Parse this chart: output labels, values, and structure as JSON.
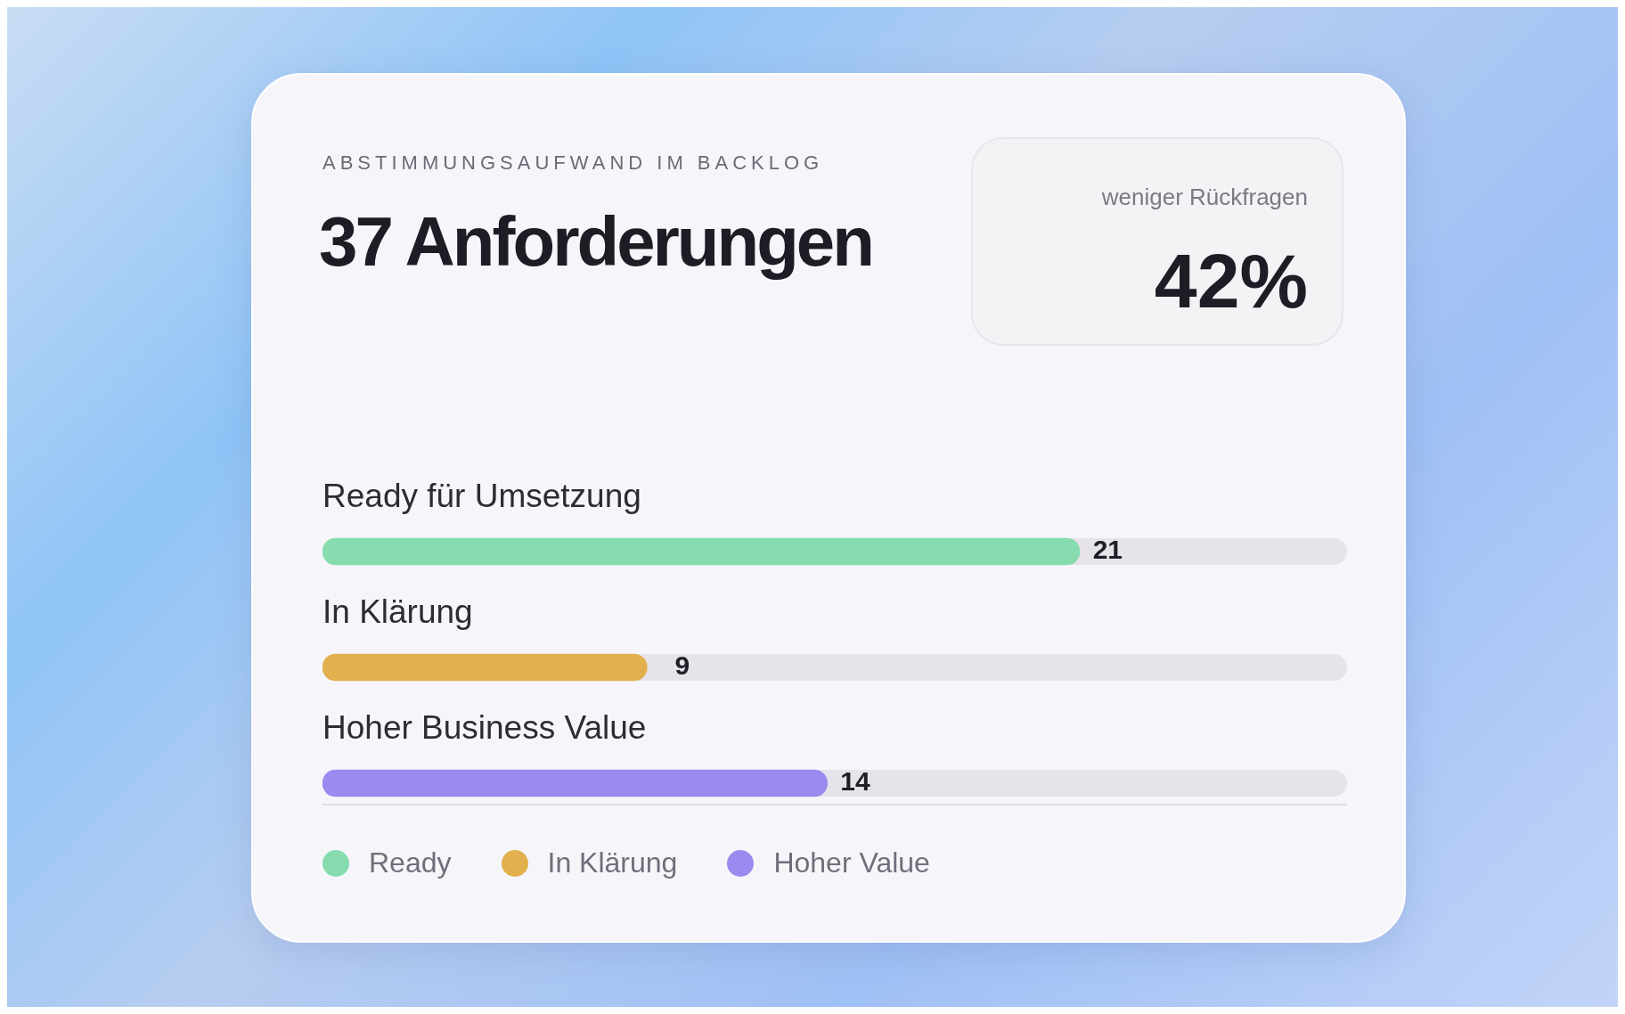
{
  "chart_data": {
    "type": "bar",
    "orientation": "horizontal",
    "stacked": true,
    "subtitle": "ABSTIMMUNGSAUFWAND IM BACKLOG",
    "title": "37 Anforderungen",
    "annotations": [
      "weniger Rückfragen",
      "42%"
    ],
    "categories": [
      "Ready für Umsetzung",
      "In Klärung",
      "Hoher Business Value"
    ],
    "series": [
      {
        "name": "Ready",
        "color": "#86dcae",
        "values": [
          21,
          null,
          null
        ]
      },
      {
        "name": "In Klärung",
        "color": "#e2b14e",
        "values": [
          null,
          9,
          null
        ]
      },
      {
        "name": "Hoher Value",
        "color": "#9b8aef",
        "values": [
          null,
          null,
          14
        ]
      }
    ],
    "data_labels": true,
    "legend": "bottom left",
    "tick_labels": false
  }
}
